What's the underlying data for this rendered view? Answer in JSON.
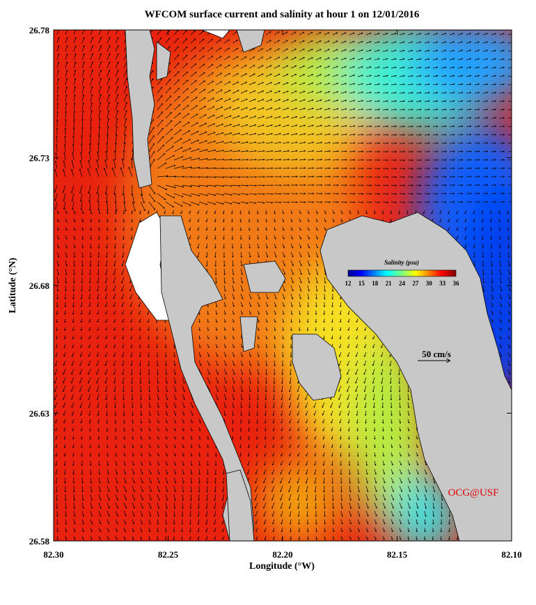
{
  "title": "WFCOM surface current and salinity at hour 1 on 12/01/2016",
  "x_axis": {
    "label": "Longitude (°W)",
    "lim": [
      {
        "value": 82.3,
        "label": "82.30"
      },
      {
        "value": 82.1,
        "label": "82.10"
      }
    ],
    "ticks": [
      {
        "value": 82.3,
        "label": "82.30"
      },
      82.25,
      {
        "value": 82.2,
        "label": "82.20"
      },
      82.15,
      {
        "value": 82.1,
        "label": "82.10"
      }
    ]
  },
  "y_axis": {
    "label": "Latitude (°N)",
    "lim": [
      26.58,
      26.78
    ],
    "ticks": [
      26.58,
      26.63,
      26.68,
      26.73,
      26.78
    ]
  },
  "colorbar": {
    "title": "Salinity (psu)",
    "lim": [
      12,
      36
    ],
    "ticks": [
      12,
      15,
      18,
      21,
      24,
      27,
      30,
      33,
      36
    ]
  },
  "scale_label": "50 cm/s",
  "credit": "OCG@USF"
}
